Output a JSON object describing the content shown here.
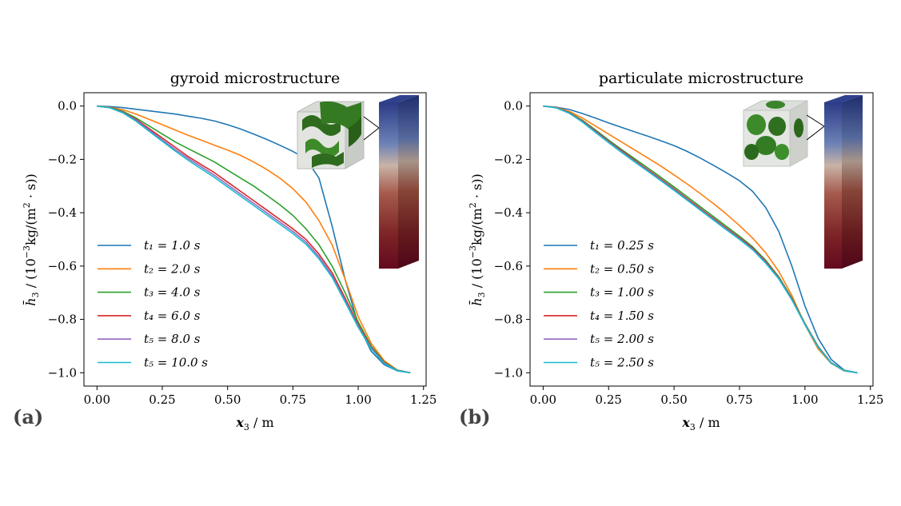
{
  "chart_data": [
    {
      "type": "line",
      "panel_label": "(a)",
      "title": "gyroid microstructure",
      "xlabel": "x₃ / m",
      "ylabel": "h̄₃ / (10⁻³kg/(m² · s))",
      "xlim": [
        -0.05,
        1.26
      ],
      "ylim": [
        -1.05,
        0.05
      ],
      "xticks": [
        "0.00",
        "0.25",
        "0.50",
        "0.75",
        "1.00",
        "1.25"
      ],
      "yticks": [
        "0.0",
        "−0.2",
        "−0.4",
        "−0.6",
        "−0.8",
        "−1.0"
      ],
      "legend_position": "lower-left",
      "x": [
        0.0,
        0.05,
        0.1,
        0.15,
        0.2,
        0.25,
        0.3,
        0.35,
        0.4,
        0.45,
        0.5,
        0.55,
        0.6,
        0.65,
        0.7,
        0.75,
        0.8,
        0.85,
        0.9,
        0.95,
        1.0,
        1.05,
        1.1,
        1.15,
        1.2
      ],
      "series": [
        {
          "name": "t₁ = 1.0 s",
          "color": "#1f77b4",
          "values": [
            0.0,
            -0.002,
            -0.006,
            -0.012,
            -0.018,
            -0.024,
            -0.03,
            -0.038,
            -0.046,
            -0.056,
            -0.07,
            -0.086,
            -0.105,
            -0.125,
            -0.147,
            -0.17,
            -0.198,
            -0.27,
            -0.45,
            -0.65,
            -0.82,
            -0.92,
            -0.97,
            -0.993,
            -1.0
          ]
        },
        {
          "name": "t₂ = 2.0 s",
          "color": "#ff7f0e",
          "values": [
            0.0,
            -0.004,
            -0.014,
            -0.03,
            -0.05,
            -0.07,
            -0.09,
            -0.11,
            -0.128,
            -0.147,
            -0.165,
            -0.185,
            -0.21,
            -0.238,
            -0.27,
            -0.31,
            -0.36,
            -0.43,
            -0.52,
            -0.65,
            -0.79,
            -0.89,
            -0.955,
            -0.99,
            -1.0
          ]
        },
        {
          "name": "t₃ = 4.0 s",
          "color": "#2ca02c",
          "values": [
            0.0,
            -0.005,
            -0.02,
            -0.045,
            -0.075,
            -0.105,
            -0.135,
            -0.16,
            -0.185,
            -0.21,
            -0.24,
            -0.27,
            -0.3,
            -0.335,
            -0.37,
            -0.41,
            -0.46,
            -0.52,
            -0.6,
            -0.7,
            -0.81,
            -0.9,
            -0.96,
            -0.99,
            -1.0
          ]
        },
        {
          "name": "t₄ = 6.0 s",
          "color": "#d62728",
          "values": [
            0.0,
            -0.006,
            -0.023,
            -0.05,
            -0.085,
            -0.12,
            -0.155,
            -0.19,
            -0.22,
            -0.25,
            -0.285,
            -0.32,
            -0.355,
            -0.39,
            -0.425,
            -0.46,
            -0.5,
            -0.555,
            -0.625,
            -0.72,
            -0.82,
            -0.905,
            -0.962,
            -0.992,
            -1.0
          ]
        },
        {
          "name": "t₅ = 8.0 s",
          "color": "#9467bd",
          "values": [
            0.0,
            -0.006,
            -0.024,
            -0.053,
            -0.09,
            -0.127,
            -0.163,
            -0.197,
            -0.228,
            -0.26,
            -0.295,
            -0.33,
            -0.365,
            -0.4,
            -0.435,
            -0.47,
            -0.51,
            -0.565,
            -0.635,
            -0.728,
            -0.825,
            -0.908,
            -0.964,
            -0.992,
            -1.0
          ]
        },
        {
          "name": "t₅ = 10.0 s",
          "color": "#17becf",
          "values": [
            0.0,
            -0.007,
            -0.026,
            -0.057,
            -0.095,
            -0.132,
            -0.169,
            -0.204,
            -0.236,
            -0.268,
            -0.303,
            -0.338,
            -0.373,
            -0.408,
            -0.443,
            -0.478,
            -0.518,
            -0.573,
            -0.642,
            -0.735,
            -0.83,
            -0.91,
            -0.965,
            -0.993,
            -1.0
          ]
        }
      ]
    },
    {
      "type": "line",
      "panel_label": "(b)",
      "title": "particulate microstructure",
      "xlabel": "x₃ / m",
      "ylabel": "h̄₃ / (10⁻³kg/(m² · s))",
      "xlim": [
        -0.05,
        1.26
      ],
      "ylim": [
        -1.05,
        0.05
      ],
      "xticks": [
        "0.00",
        "0.25",
        "0.50",
        "0.75",
        "1.00",
        "1.25"
      ],
      "yticks": [
        "0.0",
        "−0.2",
        "−0.4",
        "−0.6",
        "−0.8",
        "−1.0"
      ],
      "legend_position": "lower-left",
      "x": [
        0.0,
        0.05,
        0.1,
        0.15,
        0.2,
        0.25,
        0.3,
        0.35,
        0.4,
        0.45,
        0.5,
        0.55,
        0.6,
        0.65,
        0.7,
        0.75,
        0.8,
        0.85,
        0.9,
        0.95,
        1.0,
        1.05,
        1.1,
        1.15,
        1.2
      ],
      "series": [
        {
          "name": "t₁ = 0.25 s",
          "color": "#1f77b4",
          "values": [
            0.0,
            -0.004,
            -0.013,
            -0.028,
            -0.045,
            -0.063,
            -0.08,
            -0.097,
            -0.113,
            -0.13,
            -0.148,
            -0.17,
            -0.195,
            -0.222,
            -0.25,
            -0.28,
            -0.32,
            -0.38,
            -0.47,
            -0.6,
            -0.75,
            -0.87,
            -0.95,
            -0.99,
            -1.0
          ]
        },
        {
          "name": "t₂ = 0.50 s",
          "color": "#ff7f0e",
          "values": [
            0.0,
            -0.005,
            -0.02,
            -0.045,
            -0.075,
            -0.105,
            -0.135,
            -0.165,
            -0.195,
            -0.225,
            -0.258,
            -0.292,
            -0.328,
            -0.365,
            -0.405,
            -0.448,
            -0.495,
            -0.55,
            -0.62,
            -0.71,
            -0.82,
            -0.91,
            -0.965,
            -0.993,
            -1.0
          ]
        },
        {
          "name": "t₃ = 1.00 s",
          "color": "#2ca02c",
          "values": [
            0.0,
            -0.006,
            -0.024,
            -0.053,
            -0.09,
            -0.127,
            -0.163,
            -0.198,
            -0.232,
            -0.267,
            -0.303,
            -0.34,
            -0.377,
            -0.414,
            -0.451,
            -0.488,
            -0.528,
            -0.578,
            -0.64,
            -0.72,
            -0.815,
            -0.9,
            -0.962,
            -0.992,
            -1.0
          ]
        },
        {
          "name": "t₄ = 1.50 s",
          "color": "#d62728",
          "values": [
            0.0,
            -0.006,
            -0.025,
            -0.056,
            -0.094,
            -0.132,
            -0.168,
            -0.204,
            -0.239,
            -0.274,
            -0.31,
            -0.347,
            -0.384,
            -0.421,
            -0.458,
            -0.494,
            -0.533,
            -0.583,
            -0.644,
            -0.723,
            -0.817,
            -0.902,
            -0.963,
            -0.992,
            -1.0
          ]
        },
        {
          "name": "t₅ = 2.00 s",
          "color": "#9467bd",
          "values": [
            0.0,
            -0.006,
            -0.026,
            -0.058,
            -0.096,
            -0.134,
            -0.171,
            -0.207,
            -0.242,
            -0.277,
            -0.313,
            -0.35,
            -0.387,
            -0.424,
            -0.461,
            -0.497,
            -0.536,
            -0.586,
            -0.646,
            -0.725,
            -0.818,
            -0.903,
            -0.963,
            -0.992,
            -1.0
          ]
        },
        {
          "name": "t₅ = 2.50 s",
          "color": "#17becf",
          "values": [
            0.0,
            -0.007,
            -0.027,
            -0.06,
            -0.099,
            -0.137,
            -0.174,
            -0.21,
            -0.245,
            -0.28,
            -0.316,
            -0.353,
            -0.39,
            -0.427,
            -0.464,
            -0.5,
            -0.539,
            -0.589,
            -0.648,
            -0.727,
            -0.82,
            -0.904,
            -0.964,
            -0.992,
            -1.0
          ]
        }
      ]
    }
  ]
}
